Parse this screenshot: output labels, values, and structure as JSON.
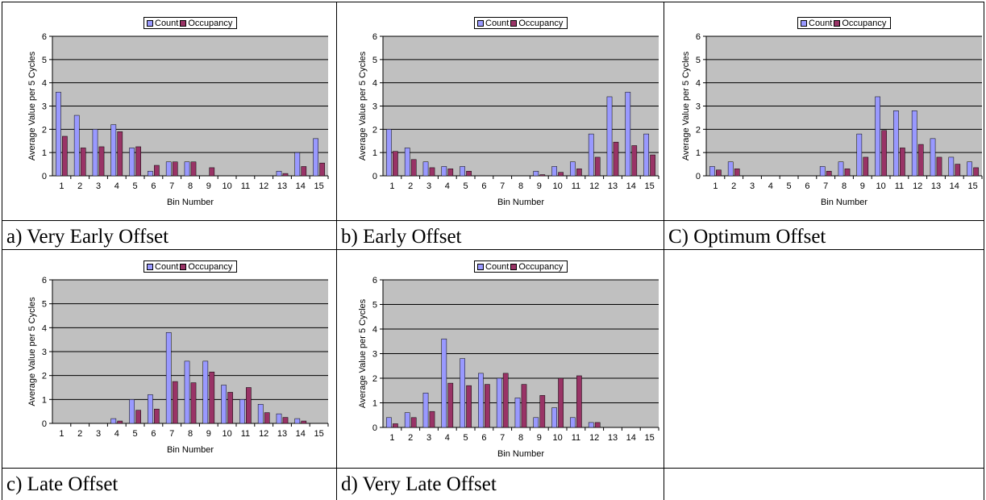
{
  "captions": [
    "a) Very Early Offset",
    "b) Early Offset",
    "C) Optimum Offset",
    "c) Late Offset",
    "d) Very Late Offset"
  ],
  "colors": {
    "count": "#9999ff",
    "occupancy": "#993366",
    "plot_bg": "#c0c0c0"
  },
  "chart_data": [
    {
      "type": "bar",
      "categories": [
        "1",
        "2",
        "3",
        "4",
        "5",
        "6",
        "7",
        "8",
        "9",
        "10",
        "11",
        "12",
        "13",
        "14",
        "15"
      ],
      "series": [
        {
          "name": "Count",
          "values": [
            3.6,
            2.6,
            2.0,
            2.2,
            1.2,
            0.2,
            0.6,
            0.6,
            0,
            0,
            0,
            0,
            0.2,
            1.0,
            1.6
          ]
        },
        {
          "name": "Occupancy",
          "values": [
            1.7,
            1.2,
            1.25,
            1.9,
            1.25,
            0.45,
            0.6,
            0.6,
            0.35,
            0,
            0,
            0,
            0.1,
            0.4,
            0.55
          ]
        }
      ],
      "xlabel": "Bin Number",
      "ylabel": "Average Value per 5 Cycles",
      "ylim": [
        0,
        6
      ],
      "yticks": [
        "0",
        "1",
        "2",
        "3",
        "4",
        "5",
        "6"
      ],
      "grid": true,
      "legend": "top"
    },
    {
      "type": "bar",
      "categories": [
        "1",
        "2",
        "3",
        "4",
        "5",
        "6",
        "7",
        "8",
        "9",
        "10",
        "11",
        "12",
        "13",
        "14",
        "15"
      ],
      "series": [
        {
          "name": "Count",
          "values": [
            2.0,
            1.2,
            0.6,
            0.4,
            0.4,
            0,
            0,
            0,
            0.2,
            0.4,
            0.6,
            1.8,
            3.4,
            3.6,
            1.8
          ]
        },
        {
          "name": "Occupancy",
          "values": [
            1.05,
            0.7,
            0.35,
            0.3,
            0.2,
            0,
            0,
            0,
            0.05,
            0.15,
            0.3,
            0.8,
            1.45,
            1.3,
            0.9
          ]
        }
      ],
      "xlabel": "Bin Number",
      "ylabel": "Average Value per 5 Cycles",
      "ylim": [
        0,
        6
      ],
      "yticks": [
        "0",
        "1",
        "2",
        "3",
        "4",
        "5",
        "6"
      ],
      "grid": true,
      "legend": "top"
    },
    {
      "type": "bar",
      "categories": [
        "1",
        "2",
        "3",
        "4",
        "5",
        "6",
        "7",
        "8",
        "9",
        "10",
        "11",
        "12",
        "13",
        "14",
        "15"
      ],
      "series": [
        {
          "name": "Count",
          "values": [
            0.4,
            0.6,
            0,
            0,
            0,
            0,
            0.4,
            0.6,
            1.8,
            3.4,
            2.8,
            2.8,
            1.6,
            0.8,
            0.6
          ]
        },
        {
          "name": "Occupancy",
          "values": [
            0.25,
            0.3,
            0,
            0,
            0,
            0,
            0.2,
            0.3,
            0.8,
            1.95,
            1.2,
            1.35,
            0.8,
            0.5,
            0.35
          ]
        }
      ],
      "xlabel": "Bin Number",
      "ylabel": "Average Value per 5 Cycles",
      "ylim": [
        0,
        6
      ],
      "yticks": [
        "0",
        "1",
        "2",
        "3",
        "4",
        "5",
        "6"
      ],
      "grid": true,
      "legend": "top"
    },
    {
      "type": "bar",
      "categories": [
        "1",
        "2",
        "3",
        "4",
        "5",
        "6",
        "7",
        "8",
        "9",
        "10",
        "11",
        "12",
        "13",
        "14",
        "15"
      ],
      "series": [
        {
          "name": "Count",
          "values": [
            0,
            0,
            0,
            0.2,
            1.0,
            1.2,
            3.8,
            2.6,
            2.6,
            1.6,
            1.0,
            0.8,
            0.4,
            0.2,
            0
          ]
        },
        {
          "name": "Occupancy",
          "values": [
            0,
            0,
            0,
            0.1,
            0.55,
            0.6,
            1.75,
            1.7,
            2.15,
            1.3,
            1.5,
            0.45,
            0.25,
            0.1,
            0
          ]
        }
      ],
      "xlabel": "Bin Number",
      "ylabel": "Average Value per 5 Cycles",
      "ylim": [
        0,
        6
      ],
      "yticks": [
        "0",
        "1",
        "2",
        "3",
        "4",
        "5",
        "6"
      ],
      "grid": true,
      "legend": "top"
    },
    {
      "type": "bar",
      "categories": [
        "1",
        "2",
        "3",
        "4",
        "5",
        "6",
        "7",
        "8",
        "9",
        "10",
        "11",
        "12",
        "13",
        "14",
        "15"
      ],
      "series": [
        {
          "name": "Count",
          "values": [
            0.4,
            0.6,
            1.4,
            3.6,
            2.8,
            2.2,
            2.0,
            1.2,
            0.4,
            0.8,
            0.4,
            0.2,
            0,
            0,
            0
          ]
        },
        {
          "name": "Occupancy",
          "values": [
            0.15,
            0.4,
            0.65,
            1.8,
            1.7,
            1.75,
            2.2,
            1.75,
            1.3,
            2.0,
            2.1,
            0.2,
            0,
            0,
            0
          ]
        }
      ],
      "xlabel": "Bin Number",
      "ylabel": "Average Value per 5 Cycles",
      "ylim": [
        0,
        6
      ],
      "yticks": [
        "0",
        "1",
        "2",
        "3",
        "4",
        "5",
        "6"
      ],
      "grid": true,
      "legend": "top"
    }
  ]
}
